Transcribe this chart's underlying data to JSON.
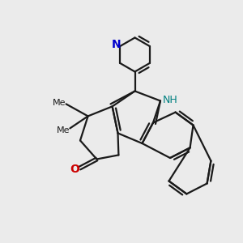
{
  "background_color": "#ebebeb",
  "bond_color": "#1a1a1a",
  "N_color": "#0000cc",
  "NH_color": "#008080",
  "O_color": "#cc0000",
  "line_width": 1.6,
  "figsize": [
    3.0,
    3.0
  ],
  "dpi": 100,
  "xlim": [
    0,
    10
  ],
  "ylim": [
    0,
    10
  ]
}
